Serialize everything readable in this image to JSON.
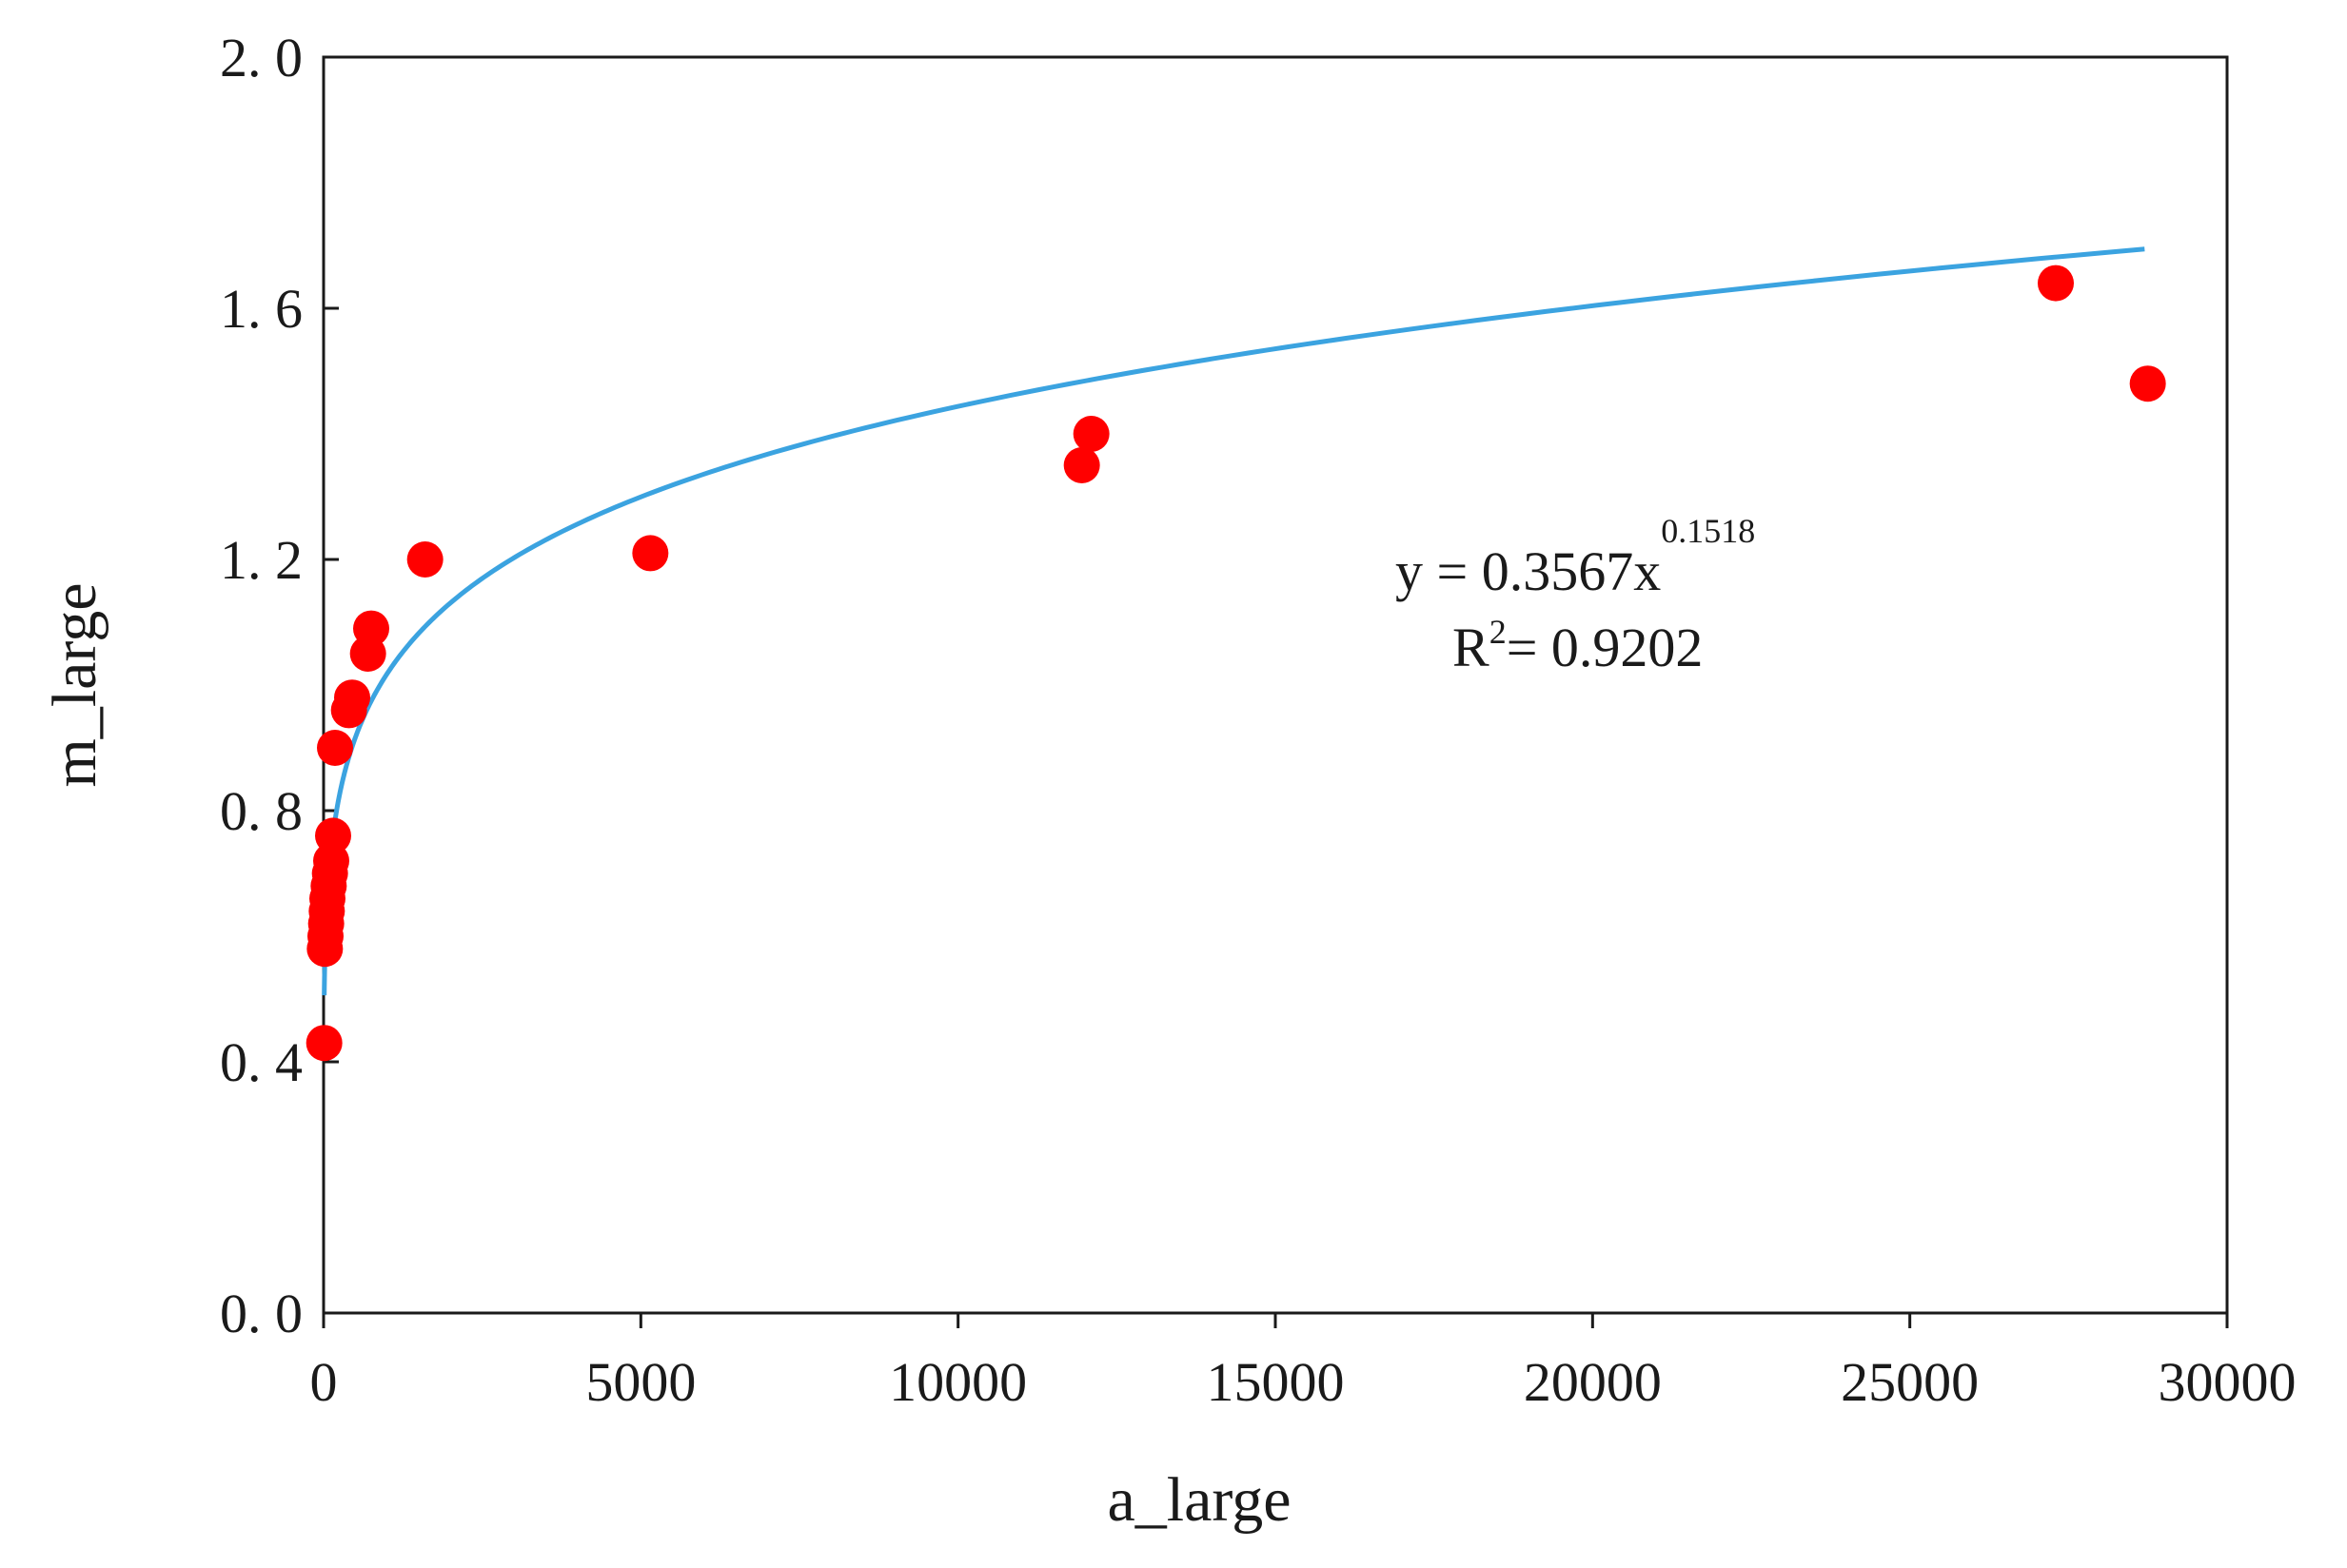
{
  "chart_data": {
    "type": "scatter",
    "xlabel": "a_large",
    "ylabel": "m_large",
    "xlim": [
      0,
      30000
    ],
    "ylim": [
      0,
      2.0
    ],
    "x_ticks": [
      0,
      5000,
      10000,
      15000,
      20000,
      25000,
      30000
    ],
    "x_tick_labels": [
      "0",
      "5000",
      "10000",
      "15000",
      "20000",
      "25000",
      "30000"
    ],
    "y_ticks": [
      0.0,
      0.4,
      0.8,
      1.2,
      1.6,
      2.0
    ],
    "y_tick_labels": [
      "0. 0",
      "0. 4",
      "0. 8",
      "1. 2",
      "1. 6",
      "2. 0"
    ],
    "grid": false,
    "points": {
      "color": "#ff0000",
      "x": [
        10,
        20,
        30,
        40,
        50,
        60,
        80,
        100,
        120,
        150,
        180,
        400,
        450,
        700,
        750,
        1600,
        5150,
        11950,
        12100,
        27300,
        28750
      ],
      "y": [
        0.43,
        0.58,
        0.6,
        0.62,
        0.64,
        0.66,
        0.68,
        0.7,
        0.72,
        0.76,
        0.9,
        0.96,
        0.98,
        1.05,
        1.09,
        1.2,
        1.21,
        1.35,
        1.4,
        1.64,
        1.48
      ]
    },
    "fit": {
      "type": "power",
      "a": 0.3567,
      "b": 0.1518,
      "x_range": [
        10,
        28700
      ],
      "color": "#3ba3e0",
      "equation": {
        "text": "y = 0.3567x",
        "exponent": "0.1518"
      },
      "r2": {
        "prefix": "R",
        "sup": "2",
        "text": "= 0.9202"
      }
    }
  }
}
